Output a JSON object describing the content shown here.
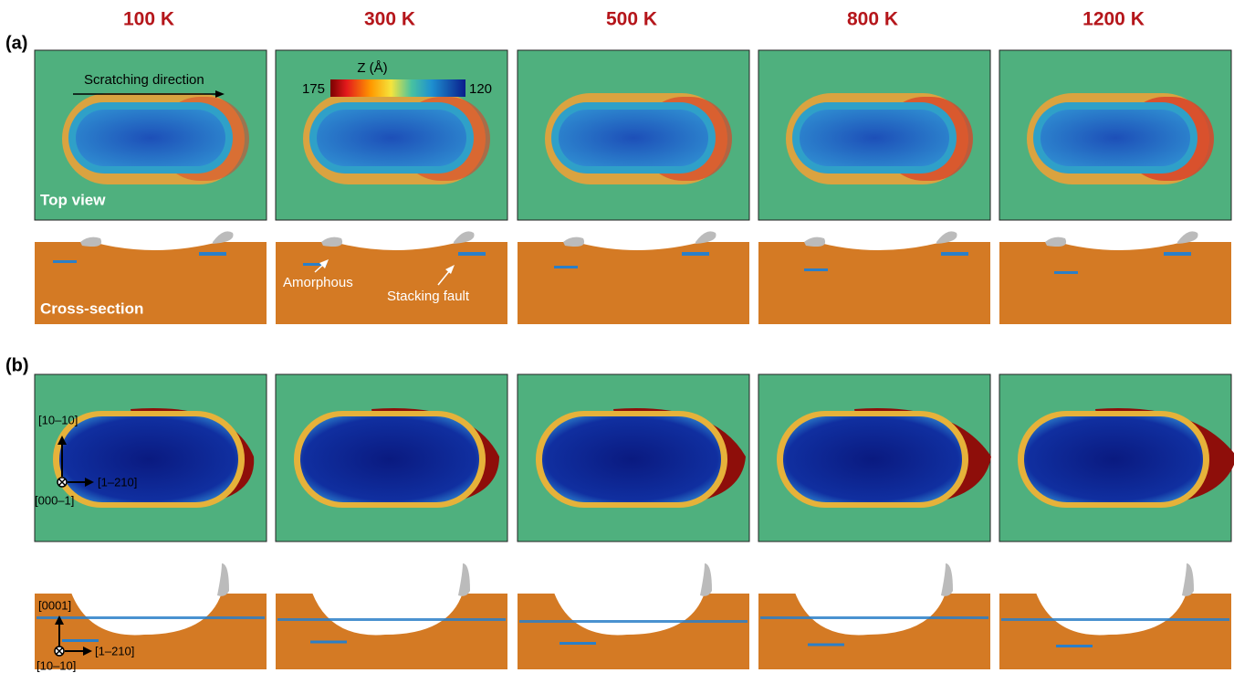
{
  "columns": [
    "100 K",
    "300 K",
    "500 K",
    "800 K",
    "1200 K"
  ],
  "panel_a": {
    "label": "(a)",
    "top_view": "Top view",
    "cross_section": "Cross-section",
    "scratching_direction": "Scratching direction",
    "colorbar": {
      "title": "Z (Å)",
      "max": 175,
      "min": 120
    },
    "annotations": [
      "Amorphous",
      "Stacking fault"
    ]
  },
  "panel_b": {
    "label": "(b)",
    "top_axes": {
      "up": "[10–10]",
      "right": "[1–210]",
      "out": "[000–1]"
    },
    "cross_axes": {
      "up": "[0001]",
      "right": "[1–210]",
      "in": "[10–10]"
    }
  }
}
